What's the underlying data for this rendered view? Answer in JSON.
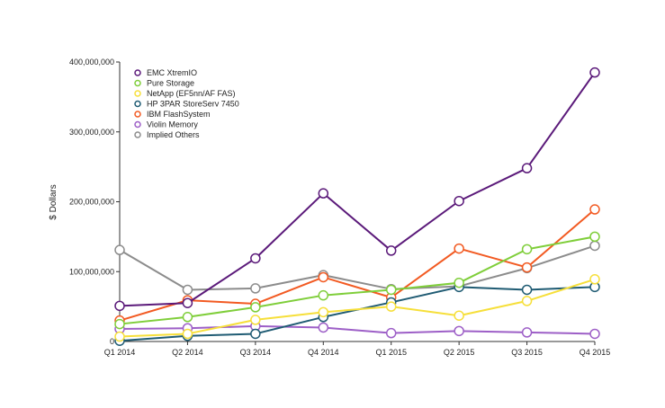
{
  "chart_data": {
    "type": "line",
    "title": "",
    "xlabel": "",
    "ylabel": "$ Dollars",
    "ylim": [
      0,
      400000000
    ],
    "yticks": [
      "0",
      "100,000,000",
      "200,000,000",
      "300,000,000",
      "400,000,000"
    ],
    "categories": [
      "Q1 2014",
      "Q2 2014",
      "Q3 2014",
      "Q4 2014",
      "Q1 2015",
      "Q2 2015",
      "Q3 2015",
      "Q4 2015"
    ],
    "grid": false,
    "legend_position": "top-left",
    "series": [
      {
        "name": "EMC XtremIO",
        "color": "#5b1a7a",
        "values": [
          51000000,
          55000000,
          119000000,
          212000000,
          130000000,
          201000000,
          248000000,
          385000000
        ]
      },
      {
        "name": "Pure Storage",
        "color": "#7fce3a",
        "values": [
          25000000,
          35000000,
          49000000,
          66000000,
          74000000,
          84000000,
          132000000,
          150000000
        ]
      },
      {
        "name": "NetApp (EF5nn/AF FAS)",
        "color": "#f6df3a",
        "values": [
          7000000,
          11000000,
          31000000,
          42000000,
          50000000,
          37000000,
          58000000,
          89000000
        ]
      },
      {
        "name": "HP 3PAR StoreServ 7450",
        "color": "#1f5b73",
        "values": [
          1000000,
          8000000,
          11000000,
          35000000,
          56000000,
          78000000,
          74000000,
          78000000
        ]
      },
      {
        "name": "IBM FlashSystem",
        "color": "#f25a22",
        "values": [
          30000000,
          59000000,
          54000000,
          92000000,
          63000000,
          133000000,
          106000000,
          189000000
        ]
      },
      {
        "name": "Violin Memory",
        "color": "#9d5fc7",
        "values": [
          18000000,
          19000000,
          22000000,
          20000000,
          12000000,
          15000000,
          13000000,
          11000000
        ]
      },
      {
        "name": "Implied Others",
        "color": "#8c8c8c",
        "values": [
          131000000,
          74000000,
          76000000,
          95000000,
          75000000,
          79000000,
          105000000,
          137000000
        ]
      }
    ]
  }
}
